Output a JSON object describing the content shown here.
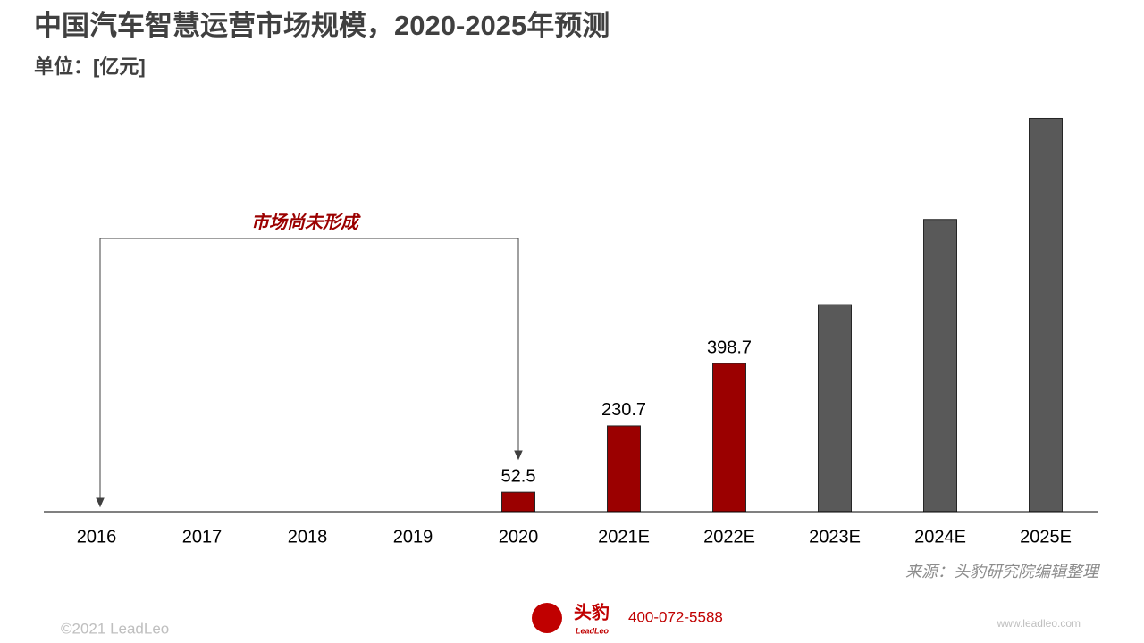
{
  "chart_data": {
    "type": "bar",
    "title": "中国汽车智慧运营市场规模，2020-2025年预测",
    "subtitle": "单位：[亿元]",
    "annotation": "市场尚未形成",
    "source": "来源：头豹研究院编辑整理",
    "categories": [
      "2016",
      "2017",
      "2018",
      "2019",
      "2020",
      "2021E",
      "2022E",
      "2023E",
      "2024E",
      "2025E"
    ],
    "series": [
      {
        "color": "#9b0000",
        "show_labels": true,
        "values": [
          null,
          null,
          null,
          null,
          52.5,
          230.7,
          398.7,
          null,
          null,
          null
        ]
      },
      {
        "color": "#595959",
        "show_labels": false,
        "values": [
          null,
          null,
          null,
          null,
          null,
          null,
          null,
          557,
          786,
          1058
        ]
      }
    ],
    "ylim": [
      0,
      1100
    ]
  },
  "footer": {
    "copyright": "©2021 LeadLeo",
    "brand": "头豹",
    "brand_en": "LeadLeo",
    "phone": "400-072-5588",
    "website": "www.leadleo.com"
  }
}
